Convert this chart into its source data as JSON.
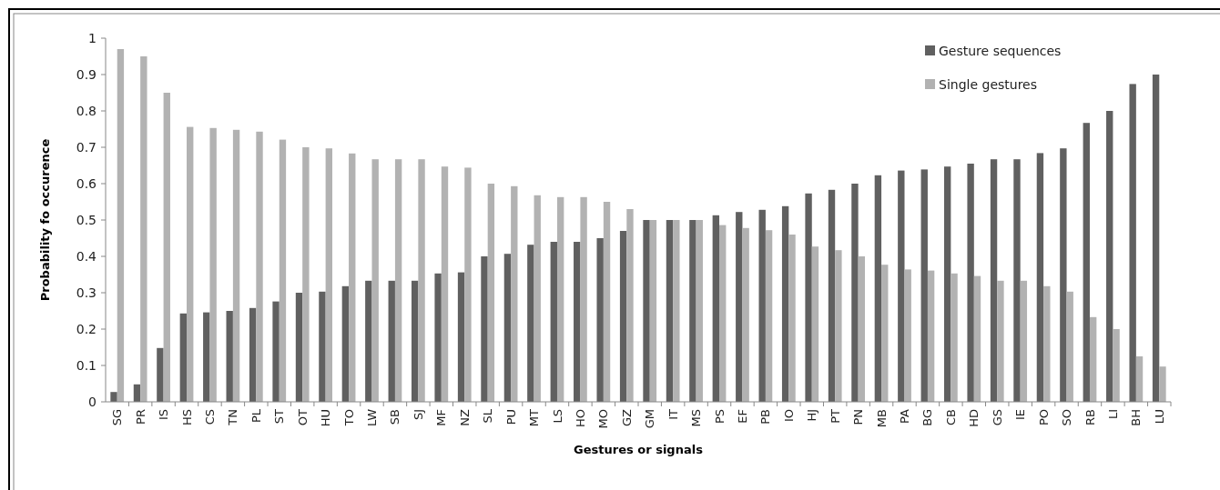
{
  "chart_data": {
    "type": "bar",
    "xlabel": "Gestures or signals",
    "ylabel": "Probability fo occurence",
    "categories": [
      "SG",
      "PR",
      "IS",
      "HS",
      "CS",
      "TN",
      "PL",
      "ST",
      "OT",
      "HU",
      "TO",
      "LW",
      "SB",
      "SJ",
      "MF",
      "NZ",
      "SL",
      "PU",
      "MT",
      "LS",
      "HO",
      "MO",
      "GZ",
      "GM",
      "IT",
      "MS",
      "PS",
      "EF",
      "PB",
      "IO",
      "HJ",
      "PT",
      "PN",
      "MB",
      "PA",
      "BG",
      "CB",
      "HD",
      "GS",
      "IE",
      "PO",
      "SO",
      "RB",
      "LI",
      "BH",
      "LU"
    ],
    "series": [
      {
        "name": "Gesture sequences",
        "color": "#606060",
        "values": [
          0.027,
          0.048,
          0.148,
          0.243,
          0.246,
          0.25,
          0.258,
          0.276,
          0.3,
          0.303,
          0.318,
          0.333,
          0.333,
          0.333,
          0.353,
          0.356,
          0.4,
          0.407,
          0.432,
          0.44,
          0.44,
          0.45,
          0.47,
          0.5,
          0.5,
          0.5,
          0.513,
          0.522,
          0.528,
          0.538,
          0.573,
          0.583,
          0.6,
          0.623,
          0.636,
          0.639,
          0.647,
          0.655,
          0.667,
          0.667,
          0.684,
          0.697,
          0.767,
          0.8,
          0.874,
          0.9
        ]
      },
      {
        "name": "Single gestures",
        "color": "#b2b2b2",
        "values": [
          0.97,
          0.95,
          0.85,
          0.756,
          0.753,
          0.748,
          0.743,
          0.721,
          0.7,
          0.697,
          0.683,
          0.667,
          0.667,
          0.667,
          0.647,
          0.644,
          0.6,
          0.593,
          0.568,
          0.563,
          0.563,
          0.55,
          0.53,
          0.5,
          0.5,
          0.5,
          0.486,
          0.478,
          0.472,
          0.46,
          0.427,
          0.417,
          0.4,
          0.377,
          0.364,
          0.361,
          0.353,
          0.346,
          0.333,
          0.333,
          0.318,
          0.303,
          0.233,
          0.2,
          0.125,
          0.097
        ]
      }
    ],
    "ylim": [
      0,
      1
    ],
    "yticks": [
      0,
      0.1,
      0.2,
      0.3,
      0.4,
      0.5,
      0.6,
      0.7,
      0.8,
      0.9,
      1
    ],
    "grid": false,
    "legend": "top right"
  }
}
